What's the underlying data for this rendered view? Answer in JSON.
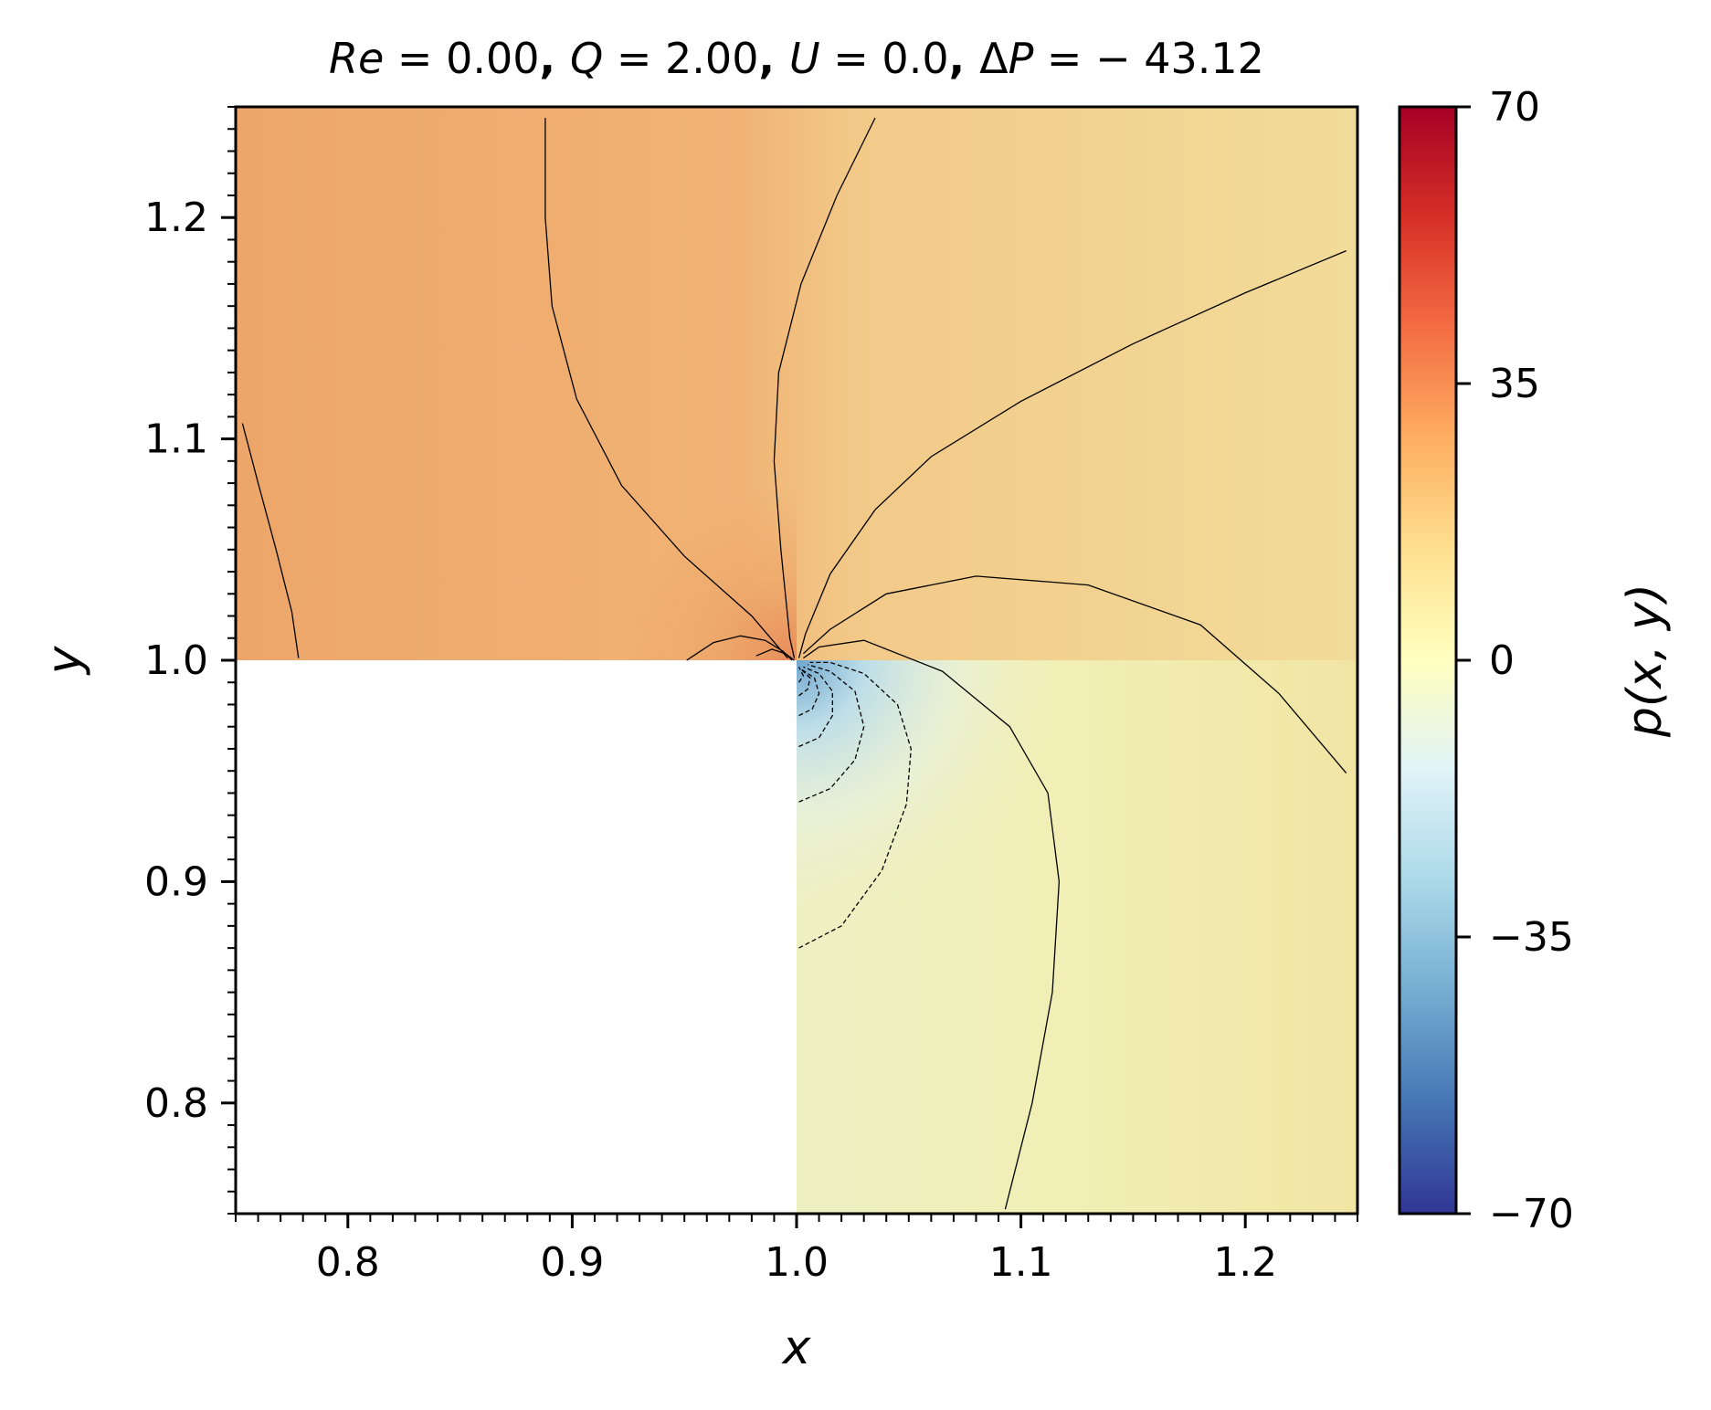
{
  "chart_data": {
    "type": "heatmap",
    "title": "Re = 0.00, Q = 2.00, U = 0.0, ΔP = − 43.12",
    "title_parts": [
      {
        "text": "Re",
        "italic": true
      },
      {
        "text": " = 0.00",
        "italic": false
      },
      {
        "text": ", ",
        "italic": false,
        "bold": true
      },
      {
        "text": "Q",
        "italic": true
      },
      {
        "text": " = 2.00",
        "italic": false
      },
      {
        "text": ", ",
        "italic": false,
        "bold": true
      },
      {
        "text": "U",
        "italic": true
      },
      {
        "text": " = 0.0",
        "italic": false
      },
      {
        "text": ", ",
        "italic": false,
        "bold": true
      },
      {
        "text": "Δ",
        "italic": false
      },
      {
        "text": "P",
        "italic": true
      },
      {
        "text": " = − 43.12",
        "italic": false
      }
    ],
    "xlabel": "x",
    "ylabel": "y",
    "xlim": [
      0.75,
      1.25
    ],
    "ylim": [
      0.75,
      1.25
    ],
    "xticks": [
      0.8,
      0.9,
      1.0,
      1.1,
      1.2
    ],
    "xtick_labels": [
      "0.8",
      "0.9",
      "1.0",
      "1.1",
      "1.2"
    ],
    "yticks": [
      0.8,
      0.9,
      1.0,
      1.1,
      1.2
    ],
    "ytick_labels": [
      "0.8",
      "0.9",
      "1.0",
      "1.1",
      "1.2"
    ],
    "minor_tick_step": 0.01,
    "excluded_region": {
      "x": [
        0.75,
        1.0
      ],
      "y": [
        0.75,
        1.0
      ]
    },
    "colormap": "RdYlBu_r",
    "colorbar": {
      "label": "p(x, y)",
      "min": -70,
      "max": 70,
      "ticks": [
        70,
        35,
        0,
        -35,
        -70
      ],
      "tick_labels": [
        "70",
        "35",
        "0",
        "−35",
        "−70"
      ]
    },
    "grid": false,
    "contours": {
      "positive": [
        [
          [
            0.753,
            1.107
          ],
          [
            0.76,
            1.08
          ],
          [
            0.768,
            1.05
          ],
          [
            0.775,
            1.022
          ],
          [
            0.778,
            1.001
          ]
        ],
        [
          [
            0.888,
            1.245
          ],
          [
            0.888,
            1.2
          ],
          [
            0.891,
            1.16
          ],
          [
            0.902,
            1.118
          ],
          [
            0.922,
            1.079
          ],
          [
            0.95,
            1.047
          ],
          [
            0.98,
            1.02
          ],
          [
            0.996,
            1.001
          ]
        ],
        [
          [
            1.035,
            1.245
          ],
          [
            1.018,
            1.21
          ],
          [
            1.002,
            1.17
          ],
          [
            0.992,
            1.13
          ],
          [
            0.99,
            1.09
          ],
          [
            0.993,
            1.05
          ],
          [
            0.997,
            1.01
          ],
          [
            0.999,
            1.001
          ]
        ],
        [
          [
            1.245,
            1.185
          ],
          [
            1.2,
            1.166
          ],
          [
            1.15,
            1.143
          ],
          [
            1.1,
            1.117
          ],
          [
            1.06,
            1.092
          ],
          [
            1.035,
            1.068
          ],
          [
            1.015,
            1.039
          ],
          [
            1.004,
            1.012
          ],
          [
            1.001,
            1.001
          ]
        ],
        [
          [
            1.245,
            0.949
          ],
          [
            1.215,
            0.985
          ],
          [
            1.18,
            1.016
          ],
          [
            1.13,
            1.034
          ],
          [
            1.08,
            1.038
          ],
          [
            1.04,
            1.03
          ],
          [
            1.015,
            1.014
          ],
          [
            1.003,
            1.003
          ]
        ],
        [
          [
            1.093,
            0.752
          ],
          [
            1.105,
            0.8
          ],
          [
            1.114,
            0.85
          ],
          [
            1.117,
            0.9
          ],
          [
            1.112,
            0.94
          ],
          [
            1.095,
            0.97
          ],
          [
            1.065,
            0.995
          ],
          [
            1.03,
            1.009
          ],
          [
            1.01,
            1.006
          ],
          [
            1.003,
            1.001
          ]
        ],
        [
          [
            0.951,
            1.0
          ],
          [
            0.963,
            1.008
          ],
          [
            0.975,
            1.011
          ],
          [
            0.986,
            1.009
          ],
          [
            0.994,
            1.004
          ],
          [
            0.998,
            1.0
          ]
        ],
        [
          [
            0.982,
            1.002
          ],
          [
            0.989,
            1.005
          ],
          [
            0.995,
            1.003
          ],
          [
            0.999,
            1.0
          ]
        ]
      ],
      "negative": [
        [
          [
            1.001,
            0.87
          ],
          [
            1.02,
            0.88
          ],
          [
            1.038,
            0.905
          ],
          [
            1.049,
            0.935
          ],
          [
            1.051,
            0.96
          ],
          [
            1.045,
            0.98
          ],
          [
            1.03,
            0.994
          ],
          [
            1.015,
            0.999
          ],
          [
            1.006,
            0.999
          ]
        ],
        [
          [
            1.001,
            0.936
          ],
          [
            1.015,
            0.942
          ],
          [
            1.026,
            0.955
          ],
          [
            1.03,
            0.97
          ],
          [
            1.026,
            0.986
          ],
          [
            1.015,
            0.995
          ],
          [
            1.005,
            0.998
          ]
        ],
        [
          [
            1.001,
            0.961
          ],
          [
            1.01,
            0.965
          ],
          [
            1.016,
            0.975
          ],
          [
            1.016,
            0.986
          ],
          [
            1.01,
            0.994
          ],
          [
            1.003,
            0.997
          ]
        ],
        [
          [
            1.001,
            0.975
          ],
          [
            1.007,
            0.978
          ],
          [
            1.01,
            0.985
          ],
          [
            1.008,
            0.992
          ],
          [
            1.002,
            0.996
          ]
        ],
        [
          [
            1.001,
            0.984
          ],
          [
            1.005,
            0.987
          ],
          [
            1.006,
            0.992
          ],
          [
            1.002,
            0.996
          ]
        ],
        [
          [
            1.001,
            0.99
          ],
          [
            1.003,
            0.993
          ],
          [
            1.001,
            0.997
          ]
        ]
      ]
    }
  }
}
